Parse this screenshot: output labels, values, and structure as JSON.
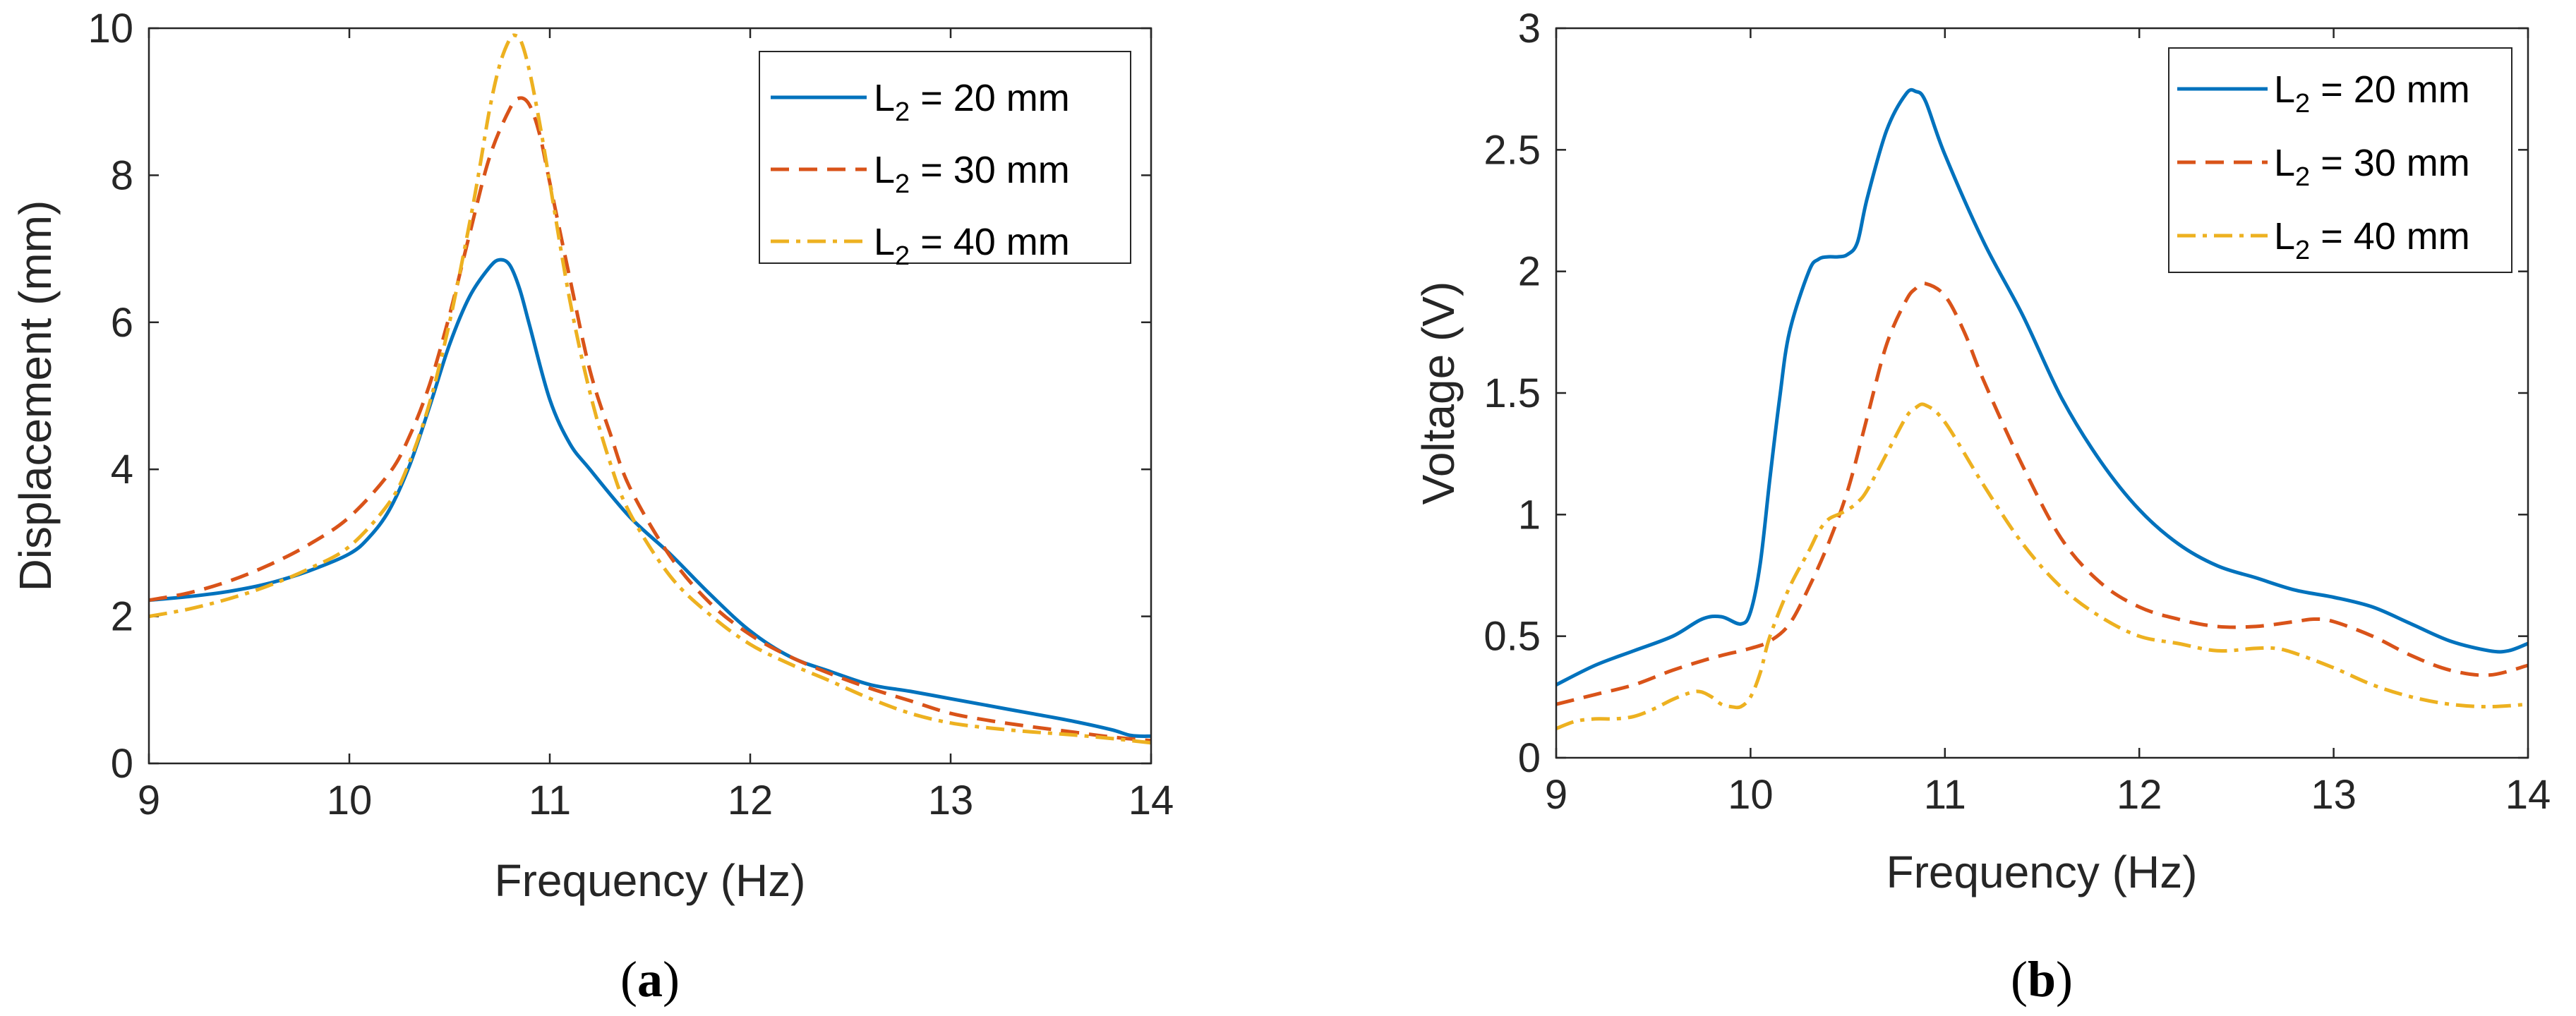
{
  "colors": {
    "series_1": "#0072BD",
    "series_2": "#D95319",
    "series_3": "#EDB120",
    "axis": "#262626"
  },
  "chart_data": [
    {
      "id": "a",
      "type": "line",
      "caption_open": "(",
      "caption_letter": "a",
      "caption_close": ")",
      "xlabel": "Frequency (Hz)",
      "ylabel": "Displacement (mm)",
      "xlim": [
        9,
        14
      ],
      "ylim": [
        0,
        10
      ],
      "xticks": [
        9,
        10,
        11,
        12,
        13,
        14
      ],
      "yticks": [
        0,
        2,
        4,
        6,
        8,
        10
      ],
      "xtick_labels": [
        "9",
        "10",
        "11",
        "12",
        "13",
        "14"
      ],
      "ytick_labels": [
        "0",
        "2",
        "4",
        "6",
        "8",
        "10"
      ],
      "legend_position": "top-right",
      "series": [
        {
          "name_main": "L",
          "name_sub": "2",
          "name_rest": " = 20 mm",
          "style": "solid",
          "x": [
            9.0,
            9.2,
            9.4,
            9.6,
            9.8,
            10.0,
            10.1,
            10.2,
            10.3,
            10.4,
            10.5,
            10.6,
            10.7,
            10.75,
            10.8,
            10.85,
            10.9,
            11.0,
            11.1,
            11.2,
            11.4,
            11.6,
            11.8,
            12.0,
            12.2,
            12.4,
            12.6,
            12.8,
            13.0,
            13.2,
            13.4,
            13.6,
            13.8,
            13.9,
            14.0
          ],
          "y": [
            2.22,
            2.27,
            2.34,
            2.45,
            2.62,
            2.85,
            3.08,
            3.45,
            4.05,
            4.85,
            5.7,
            6.35,
            6.75,
            6.85,
            6.78,
            6.45,
            5.95,
            4.95,
            4.35,
            4.0,
            3.35,
            2.85,
            2.3,
            1.8,
            1.45,
            1.25,
            1.07,
            0.98,
            0.88,
            0.78,
            0.68,
            0.58,
            0.46,
            0.38,
            0.37
          ]
        },
        {
          "name_main": "L",
          "name_sub": "2",
          "name_rest": " = 30 mm",
          "style": "dashed",
          "x": [
            9.0,
            9.2,
            9.4,
            9.6,
            9.8,
            10.0,
            10.2,
            10.3,
            10.4,
            10.5,
            10.6,
            10.7,
            10.8,
            10.85,
            10.9,
            10.95,
            11.0,
            11.1,
            11.2,
            11.3,
            11.4,
            11.6,
            11.8,
            12.0,
            12.2,
            12.4,
            12.6,
            12.8,
            13.0,
            13.2,
            13.4,
            13.6,
            13.8,
            14.0
          ],
          "y": [
            2.22,
            2.32,
            2.48,
            2.7,
            2.98,
            3.35,
            3.95,
            4.45,
            5.15,
            6.1,
            7.2,
            8.25,
            8.9,
            9.05,
            8.95,
            8.55,
            7.9,
            6.6,
            5.35,
            4.5,
            3.75,
            2.82,
            2.18,
            1.75,
            1.45,
            1.22,
            1.02,
            0.85,
            0.68,
            0.58,
            0.5,
            0.43,
            0.36,
            0.31
          ]
        },
        {
          "name_main": "L",
          "name_sub": "2",
          "name_rest": " = 40 mm",
          "style": "dashdot",
          "x": [
            9.0,
            9.2,
            9.4,
            9.6,
            9.8,
            10.0,
            10.2,
            10.3,
            10.4,
            10.5,
            10.6,
            10.65,
            10.7,
            10.75,
            10.8,
            10.83,
            10.86,
            10.9,
            10.95,
            11.0,
            11.1,
            11.2,
            11.3,
            11.4,
            11.6,
            11.8,
            12.0,
            12.2,
            12.4,
            12.6,
            12.8,
            13.0,
            13.2,
            13.4,
            13.6,
            13.8,
            14.0
          ],
          "y": [
            2.0,
            2.1,
            2.24,
            2.42,
            2.65,
            2.95,
            3.55,
            4.1,
            4.9,
            6.0,
            7.35,
            8.1,
            8.9,
            9.5,
            9.85,
            9.9,
            9.8,
            9.4,
            8.7,
            7.9,
            6.3,
            5.05,
            4.1,
            3.4,
            2.55,
            2.02,
            1.62,
            1.35,
            1.12,
            0.88,
            0.68,
            0.55,
            0.48,
            0.43,
            0.39,
            0.34,
            0.28
          ]
        }
      ]
    },
    {
      "id": "b",
      "type": "line",
      "caption_open": "(",
      "caption_letter": "b",
      "caption_close": ")",
      "xlabel": "Frequency (Hz)",
      "ylabel": "Voltage (V)",
      "xlim": [
        9,
        14
      ],
      "ylim": [
        0,
        3
      ],
      "xticks": [
        9,
        10,
        11,
        12,
        13,
        14
      ],
      "yticks": [
        0,
        0.5,
        1,
        1.5,
        2,
        2.5,
        3
      ],
      "xtick_labels": [
        "9",
        "10",
        "11",
        "12",
        "13",
        "14"
      ],
      "ytick_labels": [
        "0",
        "0.5",
        "1",
        "1.5",
        "2",
        "2.5",
        "3"
      ],
      "legend_position": "top-right",
      "series": [
        {
          "name_main": "L",
          "name_sub": "2",
          "name_rest": " = 20 mm",
          "style": "solid",
          "x": [
            9.0,
            9.2,
            9.4,
            9.6,
            9.75,
            9.85,
            9.95,
            10.0,
            10.05,
            10.1,
            10.15,
            10.2,
            10.3,
            10.35,
            10.4,
            10.45,
            10.5,
            10.55,
            10.6,
            10.7,
            10.8,
            10.85,
            10.9,
            11.0,
            11.2,
            11.4,
            11.6,
            11.8,
            12.0,
            12.2,
            12.4,
            12.6,
            12.8,
            13.0,
            13.2,
            13.4,
            13.6,
            13.8,
            13.9,
            14.0
          ],
          "y": [
            0.3,
            0.38,
            0.44,
            0.5,
            0.57,
            0.58,
            0.55,
            0.6,
            0.8,
            1.15,
            1.48,
            1.75,
            2.0,
            2.05,
            2.06,
            2.06,
            2.07,
            2.12,
            2.3,
            2.58,
            2.73,
            2.74,
            2.7,
            2.48,
            2.12,
            1.82,
            1.48,
            1.22,
            1.02,
            0.88,
            0.79,
            0.74,
            0.69,
            0.66,
            0.62,
            0.55,
            0.48,
            0.44,
            0.44,
            0.47
          ]
        },
        {
          "name_main": "L",
          "name_sub": "2",
          "name_rest": " = 30 mm",
          "style": "dashed",
          "x": [
            9.0,
            9.2,
            9.4,
            9.6,
            9.8,
            10.0,
            10.1,
            10.2,
            10.3,
            10.4,
            10.5,
            10.6,
            10.7,
            10.8,
            10.85,
            10.9,
            11.0,
            11.1,
            11.2,
            11.4,
            11.6,
            11.8,
            12.0,
            12.2,
            12.4,
            12.6,
            12.8,
            12.9,
            13.0,
            13.2,
            13.4,
            13.6,
            13.8,
            14.0
          ],
          "y": [
            0.22,
            0.26,
            0.3,
            0.36,
            0.41,
            0.45,
            0.48,
            0.55,
            0.7,
            0.88,
            1.1,
            1.4,
            1.7,
            1.88,
            1.93,
            1.95,
            1.9,
            1.75,
            1.55,
            1.2,
            0.9,
            0.72,
            0.62,
            0.57,
            0.54,
            0.54,
            0.56,
            0.57,
            0.56,
            0.5,
            0.42,
            0.36,
            0.34,
            0.38
          ]
        },
        {
          "name_main": "L",
          "name_sub": "2",
          "name_rest": " = 40 mm",
          "style": "dashdot",
          "x": [
            9.0,
            9.1,
            9.2,
            9.3,
            9.4,
            9.5,
            9.6,
            9.7,
            9.75,
            9.8,
            9.85,
            9.9,
            9.95,
            10.0,
            10.05,
            10.1,
            10.2,
            10.3,
            10.35,
            10.4,
            10.45,
            10.5,
            10.55,
            10.6,
            10.7,
            10.8,
            10.85,
            10.9,
            11.0,
            11.2,
            11.4,
            11.6,
            11.8,
            12.0,
            12.2,
            12.4,
            12.6,
            12.7,
            12.8,
            13.0,
            13.2,
            13.4,
            13.6,
            13.8,
            14.0
          ],
          "y": [
            0.12,
            0.15,
            0.16,
            0.16,
            0.17,
            0.2,
            0.24,
            0.27,
            0.27,
            0.25,
            0.22,
            0.21,
            0.21,
            0.25,
            0.35,
            0.5,
            0.7,
            0.85,
            0.93,
            0.98,
            1.0,
            1.02,
            1.05,
            1.1,
            1.25,
            1.4,
            1.44,
            1.45,
            1.38,
            1.12,
            0.88,
            0.7,
            0.58,
            0.5,
            0.47,
            0.44,
            0.45,
            0.45,
            0.43,
            0.37,
            0.3,
            0.25,
            0.22,
            0.21,
            0.22
          ]
        }
      ]
    }
  ]
}
